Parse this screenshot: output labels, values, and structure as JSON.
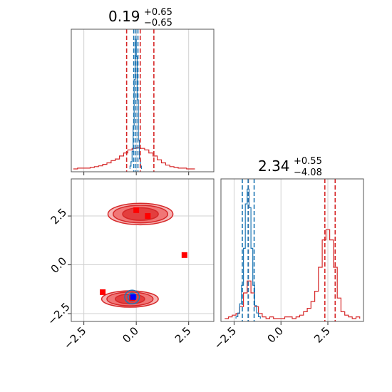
{
  "chart_data": {
    "type": "corner",
    "titles": [
      {
        "value": "0.19",
        "upper": "+0.65",
        "lower": "−0.65"
      },
      {
        "value": "2.34",
        "upper": "+0.55",
        "lower": "−4.08"
      }
    ],
    "x_ticks": [
      {
        "value": -2.5,
        "label": "−2.5"
      },
      {
        "value": 0.0,
        "label": "0.0"
      },
      {
        "value": 2.5,
        "label": "2.5"
      }
    ],
    "y_ticks": [
      {
        "value": 2.5,
        "label": "2.5"
      },
      {
        "value": 0.0,
        "label": "0.0"
      },
      {
        "value": -2.5,
        "label": "−2.5"
      }
    ],
    "p1_xlim": [
      -3.1,
      3.7
    ],
    "p2_xlim": [
      -3.2,
      4.4
    ],
    "p2_ylim": [
      -2.9,
      4.4
    ],
    "grid": true,
    "colors": {
      "red": "#d62728",
      "blue": "#1f77b4",
      "marker_blue": "#0000ff",
      "marker_red": "#ff0000"
    },
    "quantile_lines_param1": {
      "red": [
        -0.46,
        0.19,
        0.84
      ],
      "blue": [
        -0.12,
        -0.02,
        0.08
      ]
    },
    "quantile_lines_param2": {
      "red": [
        -1.74,
        2.34,
        2.89
      ],
      "blue": [
        -2.06,
        -1.75,
        -1.43
      ]
    },
    "hist1_red": {
      "edges": [
        -3.0,
        -2.8,
        -2.6,
        -2.4,
        -2.2,
        -2.0,
        -1.8,
        -1.6,
        -1.4,
        -1.2,
        -1.0,
        -0.8,
        -0.6,
        -0.4,
        -0.2,
        0.0,
        0.2,
        0.4,
        0.6,
        0.8,
        1.0,
        1.2,
        1.4,
        1.6,
        1.8,
        2.0,
        2.2,
        2.4,
        2.6,
        2.8
      ],
      "counts": [
        0,
        1,
        1,
        1,
        2,
        3,
        4,
        6,
        8,
        11,
        13,
        17,
        21,
        25,
        27,
        28,
        27,
        25,
        21,
        17,
        12,
        8,
        5,
        3,
        2,
        1,
        1,
        0,
        0
      ]
    },
    "hist1_blue": {
      "edges": [
        -0.3,
        -0.25,
        -0.2,
        -0.15,
        -0.1,
        -0.05,
        0.0,
        0.05,
        0.1,
        0.15,
        0.2,
        0.25
      ],
      "counts": [
        2,
        5,
        12,
        30,
        62,
        90,
        78,
        48,
        20,
        7,
        2
      ]
    },
    "hist2_red": {
      "edges": [
        -3.0,
        -2.8,
        -2.6,
        -2.4,
        -2.2,
        -2.0,
        -1.8,
        -1.6,
        -1.4,
        -1.2,
        -1.0,
        -0.8,
        -0.6,
        -0.4,
        -0.2,
        0.0,
        0.2,
        0.4,
        0.6,
        0.8,
        1.0,
        1.2,
        1.4,
        1.6,
        1.8,
        2.0,
        2.2,
        2.4,
        2.6,
        2.8,
        3.0,
        3.2,
        3.4,
        3.6,
        3.8,
        4.0,
        4.2
      ],
      "counts": [
        0,
        1,
        2,
        3,
        7,
        15,
        22,
        15,
        7,
        3,
        1,
        0,
        1,
        0,
        0,
        0,
        1,
        1,
        0,
        1,
        2,
        4,
        6,
        10,
        16,
        30,
        46,
        52,
        46,
        30,
        12,
        4,
        2,
        1,
        0,
        1
      ]
    },
    "hist2_blue": {
      "edges": [
        -2.4,
        -2.3,
        -2.2,
        -2.1,
        -2.0,
        -1.9,
        -1.8,
        -1.7,
        -1.6,
        -1.5,
        -1.4,
        -1.3,
        -1.2,
        -1.1
      ],
      "counts": [
        1,
        3,
        8,
        18,
        38,
        62,
        70,
        60,
        38,
        18,
        7,
        3,
        1
      ]
    },
    "red_contours": [
      {
        "cx": 0.2,
        "cy": 2.6,
        "levels": [
          [
            1.55,
            0.55
          ],
          [
            1.3,
            0.45
          ],
          [
            0.85,
            0.32
          ]
        ]
      },
      {
        "cx": -0.3,
        "cy": -1.75,
        "levels": [
          [
            1.35,
            0.42
          ],
          [
            1.1,
            0.35
          ],
          [
            0.7,
            0.25
          ]
        ]
      }
    ],
    "blue_contours": [
      {
        "cx": -0.2,
        "cy": -1.65,
        "levels": [
          [
            0.35,
            0.35
          ],
          [
            0.2,
            0.2
          ]
        ]
      }
    ],
    "red_markers": [
      {
        "x": 0.0,
        "y": 2.8
      },
      {
        "x": 0.55,
        "y": 2.5
      },
      {
        "x": 2.3,
        "y": 0.5
      },
      {
        "x": -1.6,
        "y": -1.4
      },
      {
        "x": -0.2,
        "y": -1.7
      }
    ],
    "blue_markers": [
      {
        "x": -0.15,
        "y": -1.65
      }
    ]
  }
}
